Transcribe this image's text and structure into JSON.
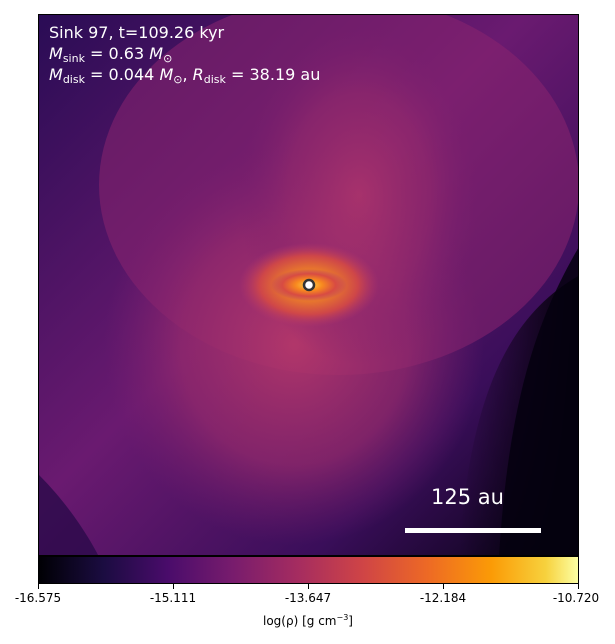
{
  "panel": {
    "sink_label": "Sink 97, t=109.26 kyr",
    "m_sink_value": "= 0.63",
    "m_disk_value": "= 0.044",
    "r_disk_value": "= 38.19 au",
    "scalebar_label": "125 au"
  },
  "colorbar": {
    "ticks": [
      "-16.575",
      "-15.111",
      "-13.647",
      "-12.184",
      "-10.720"
    ],
    "label_prefix": "log(ρ) [g cm",
    "label_exp": "−3",
    "label_suffix": "]"
  },
  "colors": {
    "background_dark": "#1a0a3a",
    "disk_mid": "#b0326c",
    "core_bright": "#fdb42f"
  }
}
